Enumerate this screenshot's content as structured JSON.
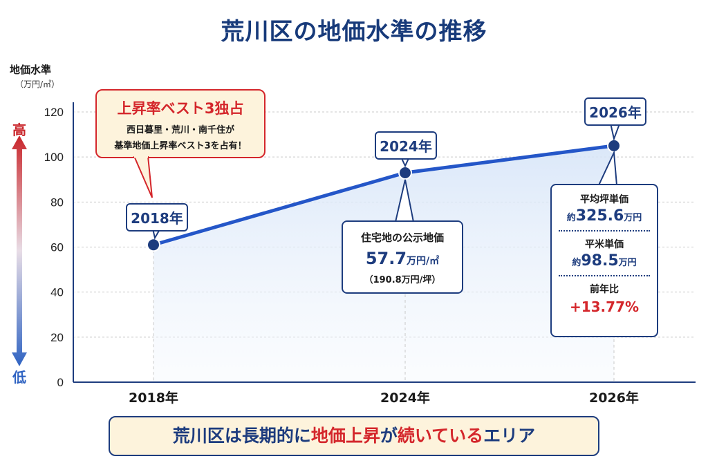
{
  "title": "荒川区の地価水準の推移",
  "y_axis": {
    "title": "地価水準",
    "unit": "（万円/㎡）",
    "high_label": "高",
    "low_label": "低"
  },
  "highlight_box": {
    "heading": "上昇率ベスト3独占",
    "line1": "西日暮里・荒川・南千住が",
    "line2": "基準地価上昇率ベスト3を占有！"
  },
  "callout_2024": {
    "heading": "住宅地の公示地価",
    "value": "57.7",
    "value_unit": "万円/㎡",
    "sub": "（190.8万円/坪）"
  },
  "callout_2026": {
    "tsubo_heading": "平均坪単価",
    "tsubo_prefix": "約",
    "tsubo_value": "325.6",
    "tsubo_unit": "万円",
    "sqm_heading": "平米単価",
    "sqm_prefix": "約",
    "sqm_value": "98.5",
    "sqm_unit": "万円",
    "yoy_heading": "前年比",
    "yoy_value": "+13.77%"
  },
  "banner": {
    "part1": "荒川区は長期的に",
    "part2": "地価上昇",
    "part3": "が",
    "part4": "続いている",
    "part5": "エリア"
  },
  "colors": {
    "navy": "#1d3c7e",
    "line": "#2456c8",
    "accent_red": "#d4262b",
    "fill": "#e8f0fb"
  },
  "chart_data": {
    "type": "line",
    "x": [
      "2018年",
      "2024年",
      "2026年"
    ],
    "y": [
      61,
      93,
      105
    ],
    "point_labels": [
      "2018年",
      "2024年",
      "2026年"
    ],
    "ylim": [
      0,
      120
    ],
    "yticks": [
      0,
      20,
      40,
      60,
      80,
      100,
      120
    ],
    "grid": true
  }
}
